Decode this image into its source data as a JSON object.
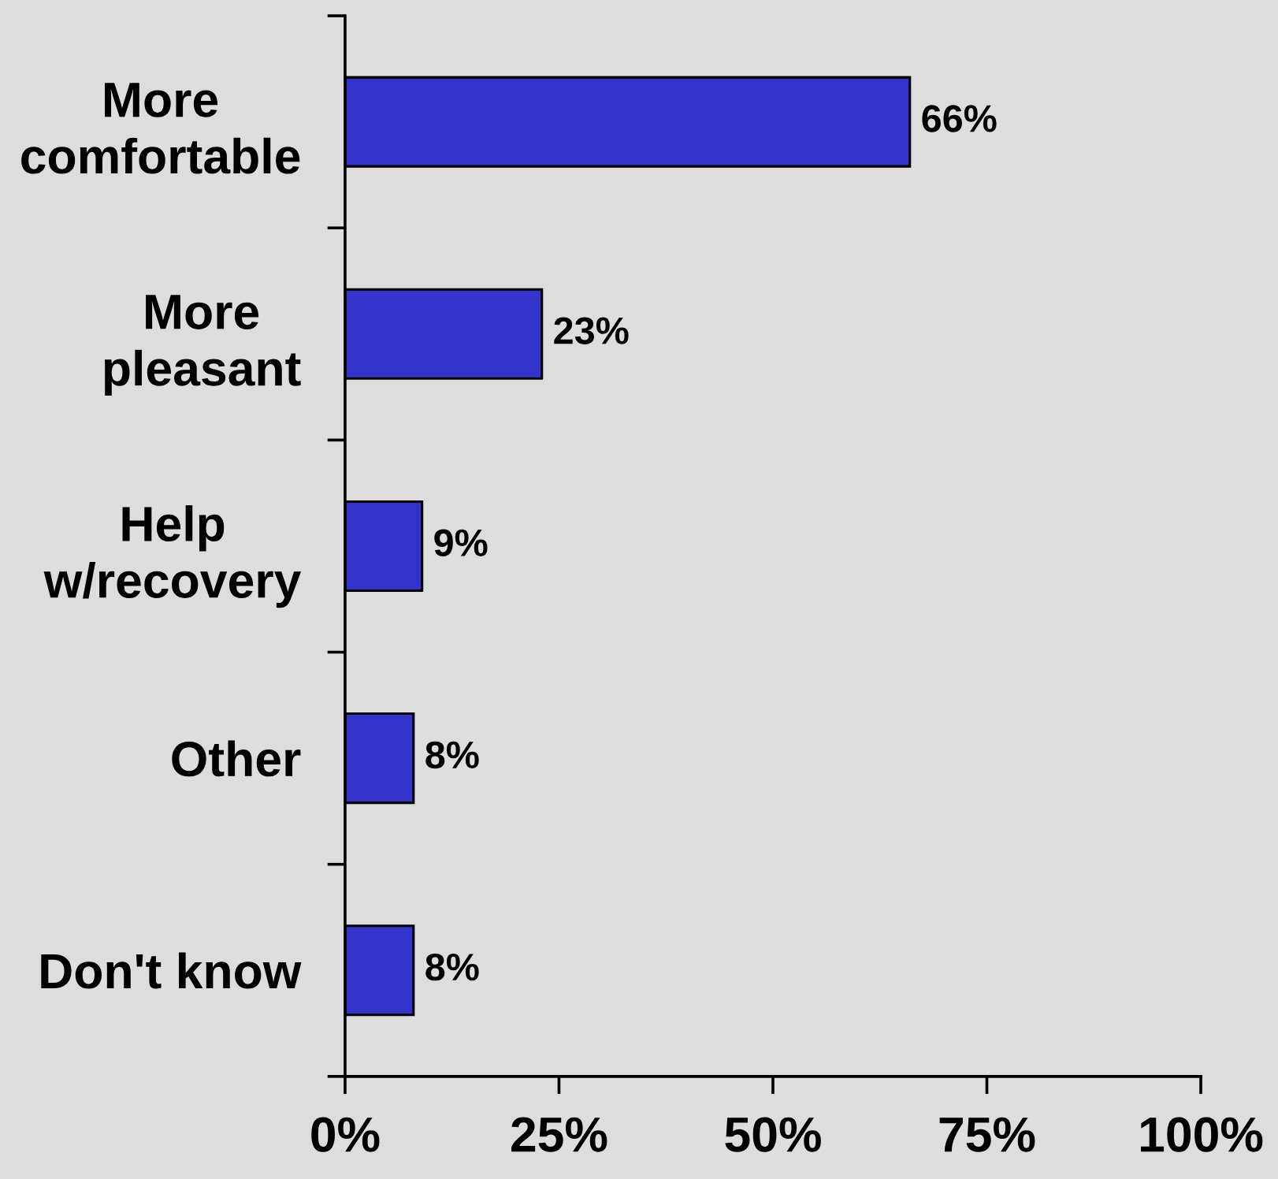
{
  "chart_data": {
    "type": "bar",
    "orientation": "horizontal",
    "categories": [
      "More\ncomfortable",
      "More\npleasant",
      "Help\nw/recovery",
      "Other",
      "Don't know"
    ],
    "values": [
      66,
      23,
      9,
      8,
      8
    ],
    "value_labels": [
      "66%",
      "23%",
      "9%",
      "8%",
      "8%"
    ],
    "color": "#3333cc",
    "xlim": [
      0,
      100
    ],
    "xticks": [
      {
        "value": 0,
        "label": "0%"
      },
      {
        "value": 25,
        "label": "25%"
      },
      {
        "value": 50,
        "label": "50%"
      },
      {
        "value": 75,
        "label": "75%"
      },
      {
        "value": 100,
        "label": "100%"
      }
    ]
  }
}
